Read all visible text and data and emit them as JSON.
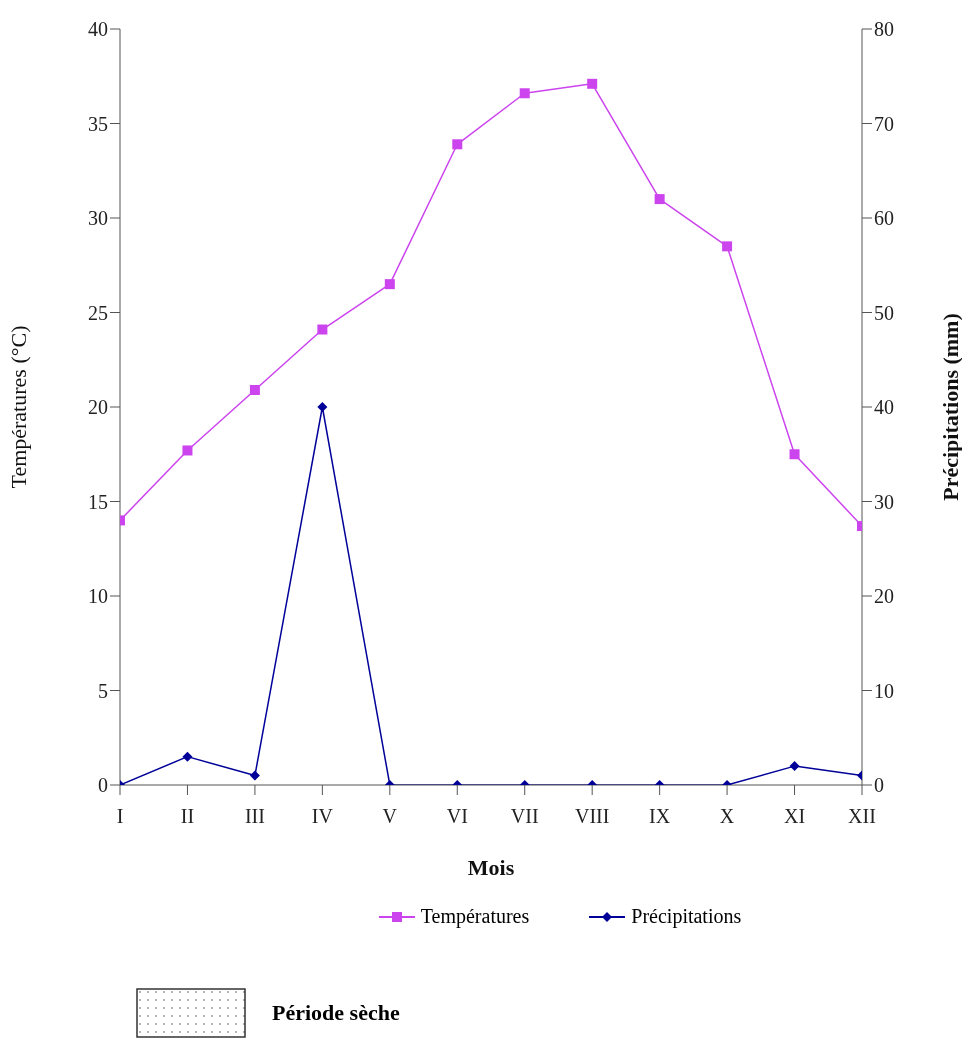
{
  "chart_data": {
    "type": "line",
    "xlabel": "Mois",
    "ylabel": "Températures (°C)",
    "y2label": "Précipitations (mm)",
    "categories": [
      "I",
      "II",
      "III",
      "IV",
      "V",
      "VI",
      "VII",
      "VIII",
      "IX",
      "X",
      "XI",
      "XII"
    ],
    "series": [
      {
        "name": "Températures",
        "color": "#cc44ee",
        "marker": "square",
        "values": [
          14,
          17.7,
          20.9,
          24.1,
          26.5,
          33.9,
          36.6,
          37.1,
          31,
          28.5,
          17.5,
          13.7
        ]
      },
      {
        "name": "Précipitations",
        "color": "#000099",
        "marker": "diamond",
        "axis": "y2",
        "values": [
          0,
          3,
          1,
          40,
          0,
          0,
          0,
          0,
          0,
          0,
          2,
          1
        ]
      }
    ],
    "ylim": [
      0,
      40
    ],
    "yticks": [
      0,
      5,
      10,
      15,
      20,
      25,
      30,
      35,
      40
    ],
    "y2lim": [
      0,
      80
    ],
    "y2ticks": [
      0,
      10,
      20,
      30,
      40,
      50,
      60,
      70,
      80
    ],
    "grid": false,
    "legend": "bottom",
    "line_style": "solid",
    "annotations": [
      "Période sèche"
    ]
  }
}
